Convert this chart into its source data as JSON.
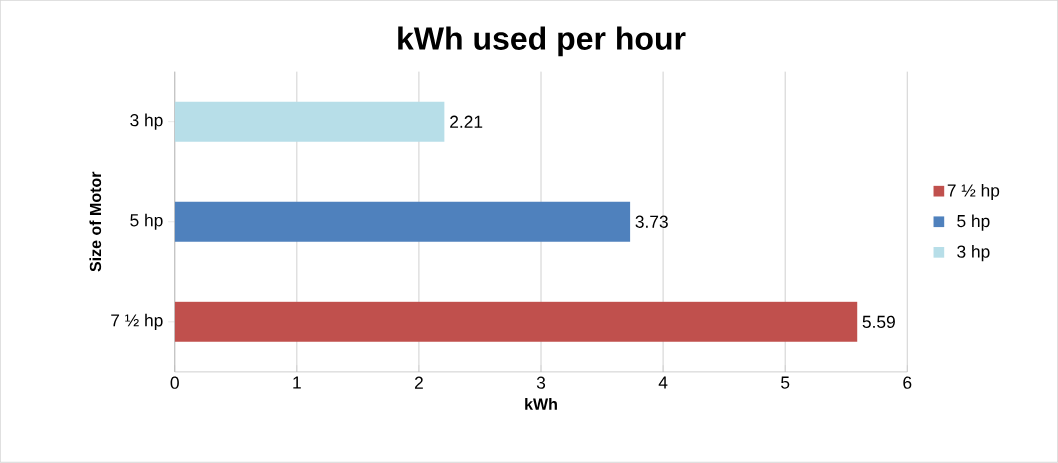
{
  "chart_data": {
    "type": "bar",
    "orientation": "horizontal",
    "title": "kWh used per hour",
    "xlabel": "kWh",
    "ylabel": "Size of Motor",
    "categories": [
      "3 hp",
      "5 hp",
      "7 ½  hp"
    ],
    "series": [
      {
        "name": "7 ½  hp",
        "color": "#c0504d",
        "values": [
          null,
          null,
          5.59
        ]
      },
      {
        "name": "5 hp",
        "color": "#4f81bd",
        "values": [
          null,
          3.73,
          null
        ]
      },
      {
        "name": "3 hp",
        "color": "#b7dee8",
        "values": [
          2.21,
          null,
          null
        ]
      }
    ],
    "xlim": [
      0,
      6
    ],
    "xticks": [
      0,
      1,
      2,
      3,
      4,
      5,
      6
    ],
    "grid": "x",
    "legend": "right",
    "data_labels": true
  }
}
